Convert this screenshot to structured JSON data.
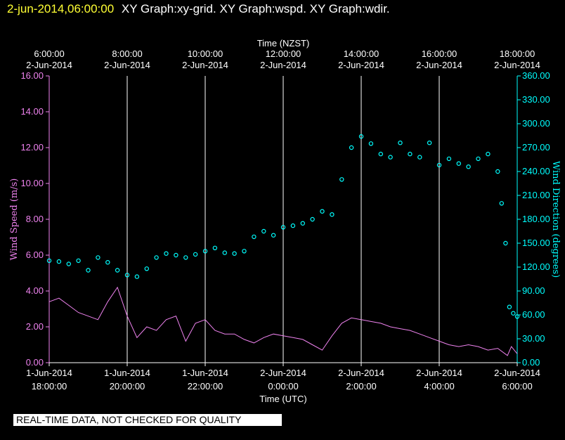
{
  "header": {
    "timestamp": "2-jun-2014,06:00:00",
    "title": "XY Graph:xy-grid.  XY Graph:wspd.  XY Graph:wdir."
  },
  "disclaimer": "REAL-TIME DATA, NOT CHECKED FOR QUALITY",
  "colors": {
    "wind_speed": "#ee82ee",
    "wind_direction": "#00ffff",
    "grid": "#ffffff",
    "background": "#000000",
    "timestamp": "#ffff33"
  },
  "chart_data": {
    "type": "scatter",
    "x_unit": "hours",
    "xlim": [
      18.0,
      30.0
    ],
    "top_axis": {
      "title": "Time (NZST)",
      "ticks": [
        {
          "x": 18,
          "line1": "6:00:00",
          "line2": "2-Jun-2014"
        },
        {
          "x": 20,
          "line1": "8:00:00",
          "line2": "2-Jun-2014"
        },
        {
          "x": 22,
          "line1": "10:00:00",
          "line2": "2-Jun-2014"
        },
        {
          "x": 24,
          "line1": "12:00:00",
          "line2": "2-Jun-2014"
        },
        {
          "x": 26,
          "line1": "14:00:00",
          "line2": "2-Jun-2014"
        },
        {
          "x": 28,
          "line1": "16:00:00",
          "line2": "2-Jun-2014"
        },
        {
          "x": 30,
          "line1": "18:00:00",
          "line2": "2-Jun-2014"
        }
      ]
    },
    "bottom_axis": {
      "title": "Time (UTC)",
      "ticks": [
        {
          "x": 18,
          "line1": "1-Jun-2014",
          "line2": "18:00:00"
        },
        {
          "x": 20,
          "line1": "1-Jun-2014",
          "line2": "20:00:00"
        },
        {
          "x": 22,
          "line1": "1-Jun-2014",
          "line2": "22:00:00"
        },
        {
          "x": 24,
          "line1": "2-Jun-2014",
          "line2": "0:00:00"
        },
        {
          "x": 26,
          "line1": "2-Jun-2014",
          "line2": "2:00:00"
        },
        {
          "x": 28,
          "line1": "2-Jun-2014",
          "line2": "4:00:00"
        },
        {
          "x": 30,
          "line1": "2-Jun-2014",
          "line2": "6:00:00"
        }
      ]
    },
    "y_left": {
      "label": "Wind Speed (m/s)",
      "ylim": [
        0,
        16
      ],
      "ticks": [
        "0.00",
        "2.00",
        "4.00",
        "6.00",
        "8.00",
        "10.00",
        "12.00",
        "14.00",
        "16.00"
      ]
    },
    "y_right": {
      "label": "Wind Direction (degrees)",
      "ylim": [
        0,
        360
      ],
      "ticks": [
        "0.00",
        "30.00",
        "60.00",
        "90.00",
        "120.00",
        "150.00",
        "180.00",
        "210.00",
        "240.00",
        "270.00",
        "300.00",
        "330.00",
        "360.00"
      ]
    },
    "grid": "vertical",
    "series": [
      {
        "name": "wspd",
        "axis": "left",
        "style": "line",
        "x": [
          18.0,
          18.25,
          18.5,
          18.75,
          19.0,
          19.25,
          19.5,
          19.75,
          20.0,
          20.25,
          20.5,
          20.75,
          21.0,
          21.25,
          21.5,
          21.75,
          22.0,
          22.25,
          22.5,
          22.75,
          23.0,
          23.25,
          23.5,
          23.75,
          24.0,
          24.25,
          24.5,
          24.75,
          25.0,
          25.25,
          25.5,
          25.75,
          26.0,
          26.25,
          26.5,
          26.75,
          27.0,
          27.25,
          27.5,
          27.75,
          28.0,
          28.25,
          28.5,
          28.75,
          29.0,
          29.25,
          29.5,
          29.75,
          29.85,
          30.0
        ],
        "values": [
          3.4,
          3.6,
          3.2,
          2.8,
          2.6,
          2.4,
          3.4,
          4.2,
          2.6,
          1.4,
          2.0,
          1.8,
          2.4,
          2.6,
          1.2,
          2.2,
          2.4,
          1.8,
          1.6,
          1.6,
          1.3,
          1.1,
          1.4,
          1.6,
          1.5,
          1.4,
          1.3,
          1.0,
          0.7,
          1.5,
          2.2,
          2.5,
          2.4,
          2.3,
          2.2,
          2.0,
          1.9,
          1.8,
          1.6,
          1.4,
          1.2,
          1.0,
          0.9,
          1.0,
          0.9,
          0.7,
          0.8,
          0.4,
          0.9,
          0.5
        ]
      },
      {
        "name": "wdir",
        "axis": "right",
        "style": "circles",
        "x": [
          18.0,
          18.25,
          18.5,
          18.75,
          19.0,
          19.25,
          19.5,
          19.75,
          20.0,
          20.25,
          20.5,
          20.75,
          21.0,
          21.25,
          21.5,
          21.75,
          22.0,
          22.25,
          22.5,
          22.75,
          23.0,
          23.25,
          23.5,
          23.75,
          24.0,
          24.25,
          24.5,
          24.75,
          25.0,
          25.25,
          25.5,
          25.75,
          26.0,
          26.25,
          26.5,
          26.75,
          27.0,
          27.25,
          27.5,
          27.75,
          28.0,
          28.25,
          28.5,
          28.75,
          29.0,
          29.25,
          29.5,
          29.6,
          29.7,
          29.8,
          29.9,
          30.0
        ],
        "values": [
          128,
          127,
          124,
          128,
          116,
          132,
          126,
          116,
          110,
          108,
          118,
          132,
          137,
          135,
          132,
          136,
          140,
          144,
          138,
          137,
          140,
          158,
          165,
          160,
          170,
          172,
          175,
          180,
          190,
          186,
          230,
          270,
          284,
          275,
          262,
          258,
          276,
          262,
          258,
          276,
          248,
          256,
          250,
          246,
          256,
          262,
          240,
          200,
          150,
          70,
          62,
          58
        ]
      }
    ]
  }
}
